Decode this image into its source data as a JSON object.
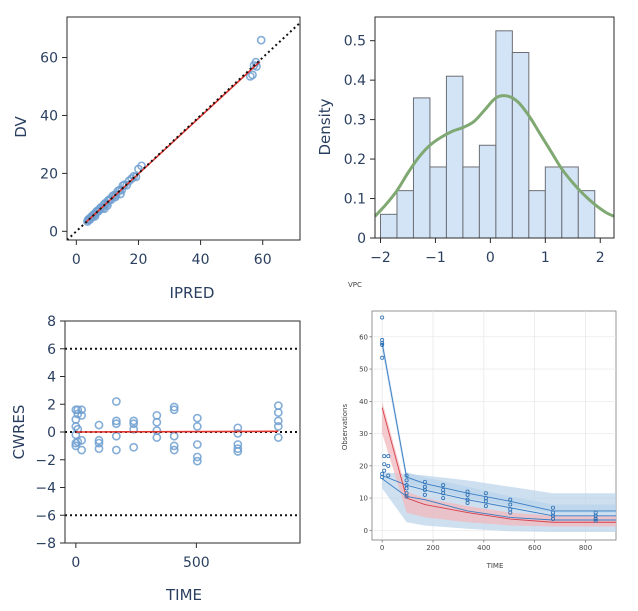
{
  "colors": {
    "frame": "#2a2a2a",
    "text": "#2a3f5f",
    "marker": "#6f9fd0",
    "trend": "#e0332e",
    "identity": "#111111",
    "hist_fill": "#d4e4f7",
    "hist_edge": "#6b6f75",
    "kde": "#7fa872",
    "vpc_obs": "#2a6fb4",
    "vpc_band_blue": "#b9d3ea",
    "vpc_band_red": "#f2b8bd",
    "vpc_line_blue": "#3a7dc4",
    "vpc_line_red": "#d6404a"
  },
  "chart_data": [
    {
      "id": "dv-vs-ipred",
      "type": "scatter",
      "xlabel": "IPRED",
      "ylabel": "DV",
      "xlim": [
        -3,
        72
      ],
      "ylim": [
        -3,
        74
      ],
      "xticks": [
        0,
        20,
        40,
        60
      ],
      "yticks": [
        0,
        20,
        40,
        60
      ],
      "grid": false,
      "identity_line": {
        "x": [
          -3,
          72
        ],
        "y": [
          -3,
          72
        ],
        "style": "dotted"
      },
      "trend_line": {
        "x": [
          3,
          59
        ],
        "y": [
          3,
          58.5
        ]
      },
      "points": [
        [
          3.6,
          3.4
        ],
        [
          3.8,
          3.9
        ],
        [
          4.0,
          4.2
        ],
        [
          4.3,
          4.0
        ],
        [
          4.5,
          4.6
        ],
        [
          4.8,
          5.0
        ],
        [
          5.1,
          4.8
        ],
        [
          5.4,
          5.6
        ],
        [
          5.8,
          6.0
        ],
        [
          6.1,
          5.9
        ],
        [
          6.5,
          6.8
        ],
        [
          6.8,
          7.1
        ],
        [
          7.2,
          7.0
        ],
        [
          7.6,
          7.9
        ],
        [
          8.0,
          8.3
        ],
        [
          8.5,
          8.1
        ],
        [
          8.9,
          9.2
        ],
        [
          9.3,
          9.7
        ],
        [
          9.8,
          9.5
        ],
        [
          10.2,
          10.6
        ],
        [
          10.7,
          11.0
        ],
        [
          11.2,
          10.9
        ],
        [
          11.7,
          12.2
        ],
        [
          12.3,
          12.6
        ],
        [
          12.8,
          12.4
        ],
        [
          13.4,
          13.9
        ],
        [
          14.0,
          14.3
        ],
        [
          14.6,
          14.2
        ],
        [
          15.0,
          15.8
        ],
        [
          15.5,
          16.1
        ],
        [
          16.2,
          15.9
        ],
        [
          17.0,
          17.4
        ],
        [
          17.8,
          18.2
        ],
        [
          18.5,
          19.0
        ],
        [
          19.2,
          18.8
        ],
        [
          20.0,
          21.5
        ],
        [
          21.0,
          22.6
        ],
        [
          14.2,
          12.9
        ],
        [
          12.5,
          11.8
        ],
        [
          10.0,
          8.9
        ],
        [
          6.0,
          5.2
        ],
        [
          9.0,
          7.8
        ],
        [
          56.0,
          53.5
        ],
        [
          56.7,
          54.0
        ],
        [
          57.2,
          57.3
        ],
        [
          57.8,
          58.4
        ],
        [
          58.0,
          56.9
        ],
        [
          59.5,
          66.0
        ]
      ]
    },
    {
      "id": "vpc-histogram",
      "type": "bar",
      "xlabel": "VPC",
      "ylabel": "Density",
      "xlim": [
        -2.1,
        2.25
      ],
      "ylim": [
        0,
        0.56
      ],
      "xticks": [
        -2,
        -1,
        0,
        1,
        2
      ],
      "yticks": [
        0,
        0.1,
        0.2,
        0.3,
        0.4,
        0.5
      ],
      "bin_edges": [
        -2.0,
        -1.7,
        -1.4,
        -1.1,
        -0.8,
        -0.5,
        -0.2,
        0.1,
        0.4,
        0.7,
        1.0,
        1.3,
        1.6,
        1.9
      ],
      "values": [
        0.06,
        0.12,
        0.355,
        0.18,
        0.41,
        0.18,
        0.235,
        0.525,
        0.47,
        0.12,
        0.18,
        0.18,
        0.12
      ],
      "kde": {
        "x": [
          -2.1,
          -1.9,
          -1.7,
          -1.5,
          -1.3,
          -1.1,
          -0.9,
          -0.7,
          -0.5,
          -0.3,
          -0.1,
          0.1,
          0.3,
          0.5,
          0.7,
          0.9,
          1.1,
          1.3,
          1.5,
          1.7,
          1.9,
          2.1,
          2.25
        ],
        "y": [
          0.055,
          0.085,
          0.12,
          0.165,
          0.205,
          0.235,
          0.255,
          0.27,
          0.28,
          0.295,
          0.325,
          0.355,
          0.36,
          0.345,
          0.31,
          0.265,
          0.22,
          0.175,
          0.14,
          0.11,
          0.085,
          0.065,
          0.055
        ]
      }
    },
    {
      "id": "cwres-vs-time",
      "type": "scatter",
      "xlabel": "TIME",
      "ylabel": "CWRES",
      "xlim": [
        -45,
        930
      ],
      "ylim": [
        -8,
        8
      ],
      "xticks": [
        0,
        500
      ],
      "yticks": [
        -8,
        -6,
        -4,
        -2,
        0,
        2,
        4,
        6,
        8
      ],
      "grid": false,
      "reference_lines": [
        6,
        0,
        -6
      ],
      "trend_line": {
        "x": [
          0,
          840
        ],
        "y": [
          0.0,
          0.05
        ]
      },
      "points": [
        [
          0,
          1.6
        ],
        [
          0,
          0.9
        ],
        [
          0,
          0.4
        ],
        [
          0,
          -0.2
        ],
        [
          0,
          -0.8
        ],
        [
          0,
          -1.0
        ],
        [
          8,
          1.6
        ],
        [
          8,
          1.3
        ],
        [
          8,
          0.2
        ],
        [
          8,
          -0.7
        ],
        [
          24,
          1.6
        ],
        [
          24,
          1.2
        ],
        [
          24,
          -0.6
        ],
        [
          24,
          -1.3
        ],
        [
          96,
          0.5
        ],
        [
          96,
          -0.6
        ],
        [
          96,
          -0.8
        ],
        [
          96,
          -1.2
        ],
        [
          168,
          2.2
        ],
        [
          168,
          0.8
        ],
        [
          168,
          0.6
        ],
        [
          168,
          -0.3
        ],
        [
          168,
          -1.3
        ],
        [
          240,
          0.8
        ],
        [
          240,
          0.6
        ],
        [
          240,
          0.2
        ],
        [
          240,
          -1.1
        ],
        [
          336,
          1.2
        ],
        [
          336,
          0.7
        ],
        [
          336,
          0.1
        ],
        [
          336,
          -0.4
        ],
        [
          408,
          1.8
        ],
        [
          408,
          1.6
        ],
        [
          408,
          -0.3
        ],
        [
          408,
          -1.0
        ],
        [
          408,
          -1.3
        ],
        [
          504,
          1.0
        ],
        [
          504,
          0.4
        ],
        [
          504,
          -0.9
        ],
        [
          504,
          -1.8
        ],
        [
          504,
          -2.1
        ],
        [
          672,
          0.3
        ],
        [
          672,
          -0.1
        ],
        [
          672,
          -0.9
        ],
        [
          672,
          -1.2
        ],
        [
          672,
          -1.4
        ],
        [
          840,
          1.9
        ],
        [
          840,
          1.4
        ],
        [
          840,
          0.8
        ],
        [
          840,
          0.4
        ],
        [
          840,
          -0.4
        ]
      ]
    },
    {
      "id": "vpc-plot",
      "type": "line",
      "xlabel": "TIME",
      "ylabel": "Observations",
      "xlim": [
        -40,
        920
      ],
      "ylim": [
        -3,
        68
      ],
      "xticks": [
        0,
        200,
        400,
        600,
        800
      ],
      "yticks": [
        0,
        10,
        20,
        30,
        40,
        50,
        60
      ],
      "grid": true,
      "x": [
        0,
        96,
        168,
        336,
        504,
        672,
        840,
        920
      ],
      "bands": [
        {
          "name": "upper-pi",
          "color": "blue",
          "lower": [
            56.0,
            14.5,
            13.0,
            10.0,
            7.5,
            5.5,
            5.5,
            5.5
          ],
          "upper": [
            60.0,
            18.0,
            16.5,
            13.5,
            10.5,
            8.0,
            8.0,
            8.0
          ]
        },
        {
          "name": "outer-pi",
          "color": "blue",
          "lower": [
            13.0,
            2.5,
            1.5,
            0.5,
            -0.3,
            -0.5,
            -0.5,
            -0.5
          ],
          "upper": [
            18.0,
            17.5,
            17.0,
            15.5,
            13.5,
            11.5,
            11.5,
            11.5
          ]
        },
        {
          "name": "median-pi",
          "color": "red",
          "lower": [
            30.0,
            5.5,
            4.0,
            2.5,
            1.5,
            1.2,
            1.2,
            1.2
          ],
          "upper": [
            40.0,
            12.0,
            10.0,
            7.5,
            5.5,
            4.5,
            4.5,
            4.5
          ]
        }
      ],
      "lines": [
        {
          "name": "obs-upper",
          "color": "blue",
          "y": [
            58.0,
            16.5,
            14.5,
            11.5,
            9.0,
            6.0,
            6.0,
            6.0
          ]
        },
        {
          "name": "obs-median",
          "color": "blue",
          "y": [
            17.0,
            14.0,
            12.5,
            9.5,
            7.0,
            4.5,
            4.5,
            4.5
          ]
        },
        {
          "name": "obs-lower",
          "color": "blue",
          "y": [
            16.0,
            10.5,
            9.5,
            6.0,
            4.0,
            3.2,
            3.2,
            3.2
          ]
        },
        {
          "name": "sim-median",
          "color": "red",
          "y": [
            38.0,
            10.0,
            8.0,
            5.5,
            3.5,
            2.5,
            2.5,
            2.5
          ]
        }
      ],
      "observations": [
        [
          0,
          66
        ],
        [
          0,
          59
        ],
        [
          0,
          58
        ],
        [
          0,
          57.5
        ],
        [
          0,
          53.5
        ],
        [
          0,
          17.5
        ],
        [
          0,
          16.5
        ],
        [
          8,
          23
        ],
        [
          8,
          20.5
        ],
        [
          8,
          18.5
        ],
        [
          24,
          23
        ],
        [
          24,
          20
        ],
        [
          24,
          17
        ],
        [
          96,
          17
        ],
        [
          96,
          15.5
        ],
        [
          96,
          14
        ],
        [
          96,
          13
        ],
        [
          96,
          11.5
        ],
        [
          96,
          10.5
        ],
        [
          168,
          15
        ],
        [
          168,
          13.5
        ],
        [
          168,
          12.5
        ],
        [
          168,
          11
        ],
        [
          240,
          14
        ],
        [
          240,
          12.5
        ],
        [
          240,
          11.5
        ],
        [
          240,
          10
        ],
        [
          336,
          12
        ],
        [
          336,
          11
        ],
        [
          336,
          9.5
        ],
        [
          336,
          8.5
        ],
        [
          408,
          11.5
        ],
        [
          408,
          10
        ],
        [
          408,
          9
        ],
        [
          408,
          7.5
        ],
        [
          504,
          9.5
        ],
        [
          504,
          8
        ],
        [
          504,
          6.5
        ],
        [
          504,
          5.5
        ],
        [
          672,
          7
        ],
        [
          672,
          5.5
        ],
        [
          672,
          4.5
        ],
        [
          672,
          3.5
        ],
        [
          840,
          5.5
        ],
        [
          840,
          4.5
        ],
        [
          840,
          3.5
        ],
        [
          840,
          3
        ]
      ]
    }
  ]
}
